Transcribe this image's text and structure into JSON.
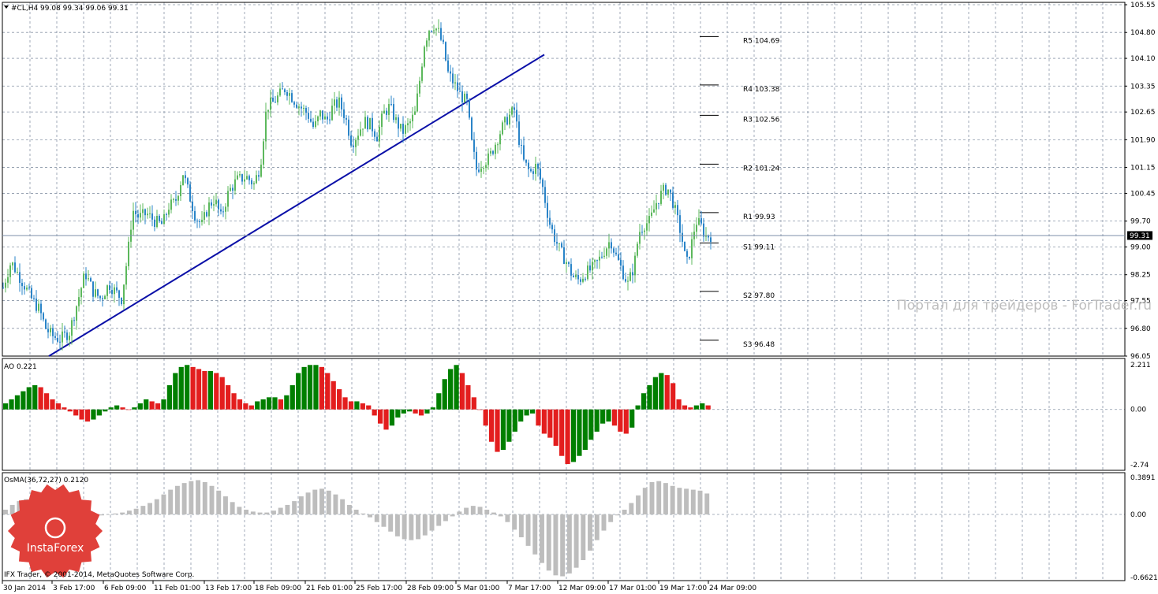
{
  "colors": {
    "background": "#ffffff",
    "grid": "#8a96a8",
    "frame": "#000000",
    "bull_candle": "#5cb85c",
    "bear_candle": "#2a84c8",
    "trendline": "#0b10a8",
    "pivot_lines": "#000000",
    "current_price_line": "#7d8fa8",
    "ao_up": "#007f00",
    "ao_down": "#e31e1e",
    "osma": "#bdbdbd",
    "logo_red": "#e0403a"
  },
  "header": {
    "symbol_line": "#CL,H4  99.08 99.34 99.06 99.31"
  },
  "chart_data": [
    {
      "type": "candlestick",
      "title": "#CL,H4  99.08 99.34 99.06 99.31",
      "ylim": [
        96.05,
        105.55
      ],
      "y_ticks": [
        "105.55",
        "104.80",
        "104.10",
        "103.35",
        "102.65",
        "101.90",
        "101.15",
        "100.45",
        "99.70",
        "99.00",
        "98.25",
        "97.55",
        "96.80",
        "96.05"
      ],
      "x_ticks": [
        "30 Jan 2014",
        "3 Feb 17:00",
        "6 Feb 09:00",
        "11 Feb 01:00",
        "13 Feb 17:00",
        "18 Feb 09:00",
        "21 Feb 01:00",
        "25 Feb 17:00",
        "28 Feb 09:00",
        "5 Mar 01:00",
        "7 Mar 17:00",
        "12 Mar 09:00",
        "17 Mar 01:00",
        "19 Mar 17:00",
        "24 Mar 09:00"
      ],
      "current_price": "99.31",
      "close_path": [
        [
          0,
          97.6
        ],
        [
          8,
          98.2
        ],
        [
          14,
          98.6
        ],
        [
          22,
          98.3
        ],
        [
          30,
          98.0
        ],
        [
          40,
          97.6
        ],
        [
          50,
          97.3
        ],
        [
          58,
          96.8
        ],
        [
          66,
          96.6
        ],
        [
          76,
          96.5
        ],
        [
          88,
          96.7
        ],
        [
          98,
          97.5
        ],
        [
          108,
          98.3
        ],
        [
          118,
          97.8
        ],
        [
          128,
          97.6
        ],
        [
          138,
          98.0
        ],
        [
          146,
          97.8
        ],
        [
          154,
          97.6
        ],
        [
          162,
          98.8
        ],
        [
          168,
          100.0
        ],
        [
          176,
          99.8
        ],
        [
          186,
          99.9
        ],
        [
          196,
          99.7
        ],
        [
          206,
          99.6
        ],
        [
          214,
          100.1
        ],
        [
          222,
          100.2
        ],
        [
          232,
          101.0
        ],
        [
          240,
          100.4
        ],
        [
          248,
          99.8
        ],
        [
          256,
          99.6
        ],
        [
          264,
          100.1
        ],
        [
          272,
          100.3
        ],
        [
          280,
          99.8
        ],
        [
          290,
          100.5
        ],
        [
          300,
          100.8
        ],
        [
          312,
          100.9
        ],
        [
          322,
          100.7
        ],
        [
          330,
          101.2
        ],
        [
          338,
          102.8
        ],
        [
          346,
          102.9
        ],
        [
          354,
          103.1
        ],
        [
          362,
          103.3
        ],
        [
          372,
          103.0
        ],
        [
          380,
          102.8
        ],
        [
          390,
          102.6
        ],
        [
          398,
          102.2
        ],
        [
          406,
          102.6
        ],
        [
          414,
          102.4
        ],
        [
          422,
          102.8
        ],
        [
          430,
          102.9
        ],
        [
          438,
          102.5
        ],
        [
          446,
          101.8
        ],
        [
          454,
          102.1
        ],
        [
          462,
          102.4
        ],
        [
          470,
          102.3
        ],
        [
          478,
          102.0
        ],
        [
          486,
          102.6
        ],
        [
          494,
          102.8
        ],
        [
          502,
          102.4
        ],
        [
          510,
          102.1
        ],
        [
          518,
          102.3
        ],
        [
          526,
          102.6
        ],
        [
          532,
          103.5
        ],
        [
          538,
          104.5
        ],
        [
          544,
          104.9
        ],
        [
          550,
          105.0
        ],
        [
          556,
          104.8
        ],
        [
          562,
          104.4
        ],
        [
          568,
          103.7
        ],
        [
          576,
          103.4
        ],
        [
          584,
          103.1
        ],
        [
          592,
          102.9
        ],
        [
          598,
          101.8
        ],
        [
          604,
          101.1
        ],
        [
          612,
          101.3
        ],
        [
          620,
          101.4
        ],
        [
          628,
          101.8
        ],
        [
          636,
          102.2
        ],
        [
          644,
          102.5
        ],
        [
          652,
          102.7
        ],
        [
          658,
          101.9
        ],
        [
          664,
          101.3
        ],
        [
          672,
          101.0
        ],
        [
          680,
          101.2
        ],
        [
          688,
          100.6
        ],
        [
          696,
          99.7
        ],
        [
          702,
          99.3
        ],
        [
          710,
          98.9
        ],
        [
          718,
          98.6
        ],
        [
          726,
          98.2
        ],
        [
          734,
          98.1
        ],
        [
          742,
          98.3
        ],
        [
          750,
          98.4
        ],
        [
          758,
          98.6
        ],
        [
          766,
          98.9
        ],
        [
          774,
          99.2
        ],
        [
          780,
          98.8
        ],
        [
          788,
          98.4
        ],
        [
          796,
          98.0
        ],
        [
          804,
          98.5
        ],
        [
          810,
          99.4
        ],
        [
          816,
          99.6
        ],
        [
          824,
          99.7
        ],
        [
          832,
          100.2
        ],
        [
          840,
          100.5
        ],
        [
          846,
          100.6
        ],
        [
          852,
          100.3
        ],
        [
          858,
          99.8
        ],
        [
          864,
          99.3
        ],
        [
          870,
          98.5
        ],
        [
          876,
          99.0
        ],
        [
          882,
          99.7
        ],
        [
          888,
          99.6
        ],
        [
          894,
          99.3
        ],
        [
          902,
          99.31
        ]
      ],
      "trendline": {
        "from": [
          62,
          96.05
        ],
        "to": [
          690,
          104.2
        ]
      },
      "pivot_levels": [
        {
          "label": "R5 104.69",
          "value": 104.69
        },
        {
          "label": "R4 103.38",
          "value": 103.38
        },
        {
          "label": "R3 102.56",
          "value": 102.56
        },
        {
          "label": "R2 101.24",
          "value": 101.24
        },
        {
          "label": "R1 99.93",
          "value": 99.93
        },
        {
          "label": "S1 99.11",
          "value": 99.11
        },
        {
          "label": "S2 97.80",
          "value": 97.8
        },
        {
          "label": "S3 96.48",
          "value": 96.48
        }
      ]
    },
    {
      "type": "bar",
      "title": "AO 0.221",
      "ylim": [
        -2.74,
        2.211
      ],
      "y_ticks": [
        "2.211",
        "0.00",
        "-2.74"
      ],
      "series": [
        {
          "name": "AO 0.221",
          "values": [
            0.3,
            0.5,
            0.7,
            0.9,
            1.1,
            1.2,
            1.1,
            0.8,
            0.5,
            0.3,
            0.1,
            -0.1,
            -0.3,
            -0.5,
            -0.6,
            -0.5,
            -0.3,
            -0.1,
            0.1,
            0.2,
            0.1,
            0.0,
            0.1,
            0.3,
            0.5,
            0.4,
            0.3,
            0.5,
            1.2,
            1.8,
            2.1,
            2.2,
            2.1,
            2.0,
            1.9,
            1.9,
            1.8,
            1.6,
            1.2,
            0.8,
            0.5,
            0.3,
            0.2,
            0.4,
            0.5,
            0.6,
            0.6,
            0.5,
            0.7,
            1.2,
            1.8,
            2.1,
            2.2,
            2.2,
            2.1,
            1.8,
            1.4,
            1.0,
            0.6,
            0.4,
            0.4,
            0.3,
            0.2,
            -0.3,
            -0.7,
            -1.0,
            -0.8,
            -0.4,
            -0.2,
            -0.1,
            -0.2,
            -0.3,
            -0.2,
            0.1,
            0.8,
            1.5,
            2.0,
            2.2,
            1.8,
            1.2,
            0.6,
            0.0,
            -0.8,
            -1.6,
            -2.1,
            -2.0,
            -1.6,
            -1.1,
            -0.6,
            -0.3,
            -0.2,
            -0.8,
            -1.2,
            -1.4,
            -1.8,
            -2.3,
            -2.7,
            -2.6,
            -2.3,
            -2.0,
            -1.5,
            -1.1,
            -0.7,
            -0.6,
            -0.8,
            -1.1,
            -1.2,
            -0.9,
            0.2,
            0.8,
            1.2,
            1.6,
            1.8,
            1.7,
            1.3,
            0.5,
            0.2,
            0.1,
            0.2,
            0.3,
            0.2
          ]
        }
      ]
    },
    {
      "type": "bar",
      "title": "OsMA(36,72,27) 0.2120",
      "ylim": [
        -0.6621,
        0.3891
      ],
      "y_ticks": [
        "0.3891",
        "0.00",
        "-0.6621"
      ],
      "series": [
        {
          "name": "OsMA(36,72,27) 0.2120",
          "values": [
            0.05,
            0.1,
            0.14,
            0.16,
            0.15,
            0.13,
            0.1,
            0.07,
            0.04,
            0.02,
            0.01,
            0.0,
            -0.01,
            -0.02,
            -0.01,
            0.0,
            0.01,
            0.02,
            0.04,
            0.06,
            0.09,
            0.12,
            0.16,
            0.21,
            0.26,
            0.3,
            0.33,
            0.35,
            0.36,
            0.34,
            0.3,
            0.25,
            0.19,
            0.13,
            0.08,
            0.05,
            0.03,
            0.02,
            0.02,
            0.04,
            0.07,
            0.1,
            0.14,
            0.19,
            0.23,
            0.26,
            0.27,
            0.25,
            0.21,
            0.16,
            0.1,
            0.05,
            0.01,
            -0.03,
            -0.08,
            -0.13,
            -0.18,
            -0.23,
            -0.26,
            -0.27,
            -0.26,
            -0.22,
            -0.17,
            -0.12,
            -0.07,
            -0.02,
            0.03,
            0.07,
            0.09,
            0.08,
            0.05,
            0.02,
            -0.02,
            -0.08,
            -0.16,
            -0.24,
            -0.33,
            -0.42,
            -0.51,
            -0.59,
            -0.64,
            -0.65,
            -0.62,
            -0.56,
            -0.48,
            -0.38,
            -0.27,
            -0.17,
            -0.08,
            -0.01,
            0.05,
            0.12,
            0.2,
            0.28,
            0.34,
            0.35,
            0.33,
            0.3,
            0.28,
            0.27,
            0.26,
            0.25,
            0.22
          ]
        }
      ]
    }
  ],
  "watermark": "Портал для трейдеров - ForTrader.ru",
  "logo": {
    "name": "InstaForex"
  },
  "footer": {
    "copyright": "IFX Trader, © 2001-2014, MetaQuotes Software Corp."
  }
}
